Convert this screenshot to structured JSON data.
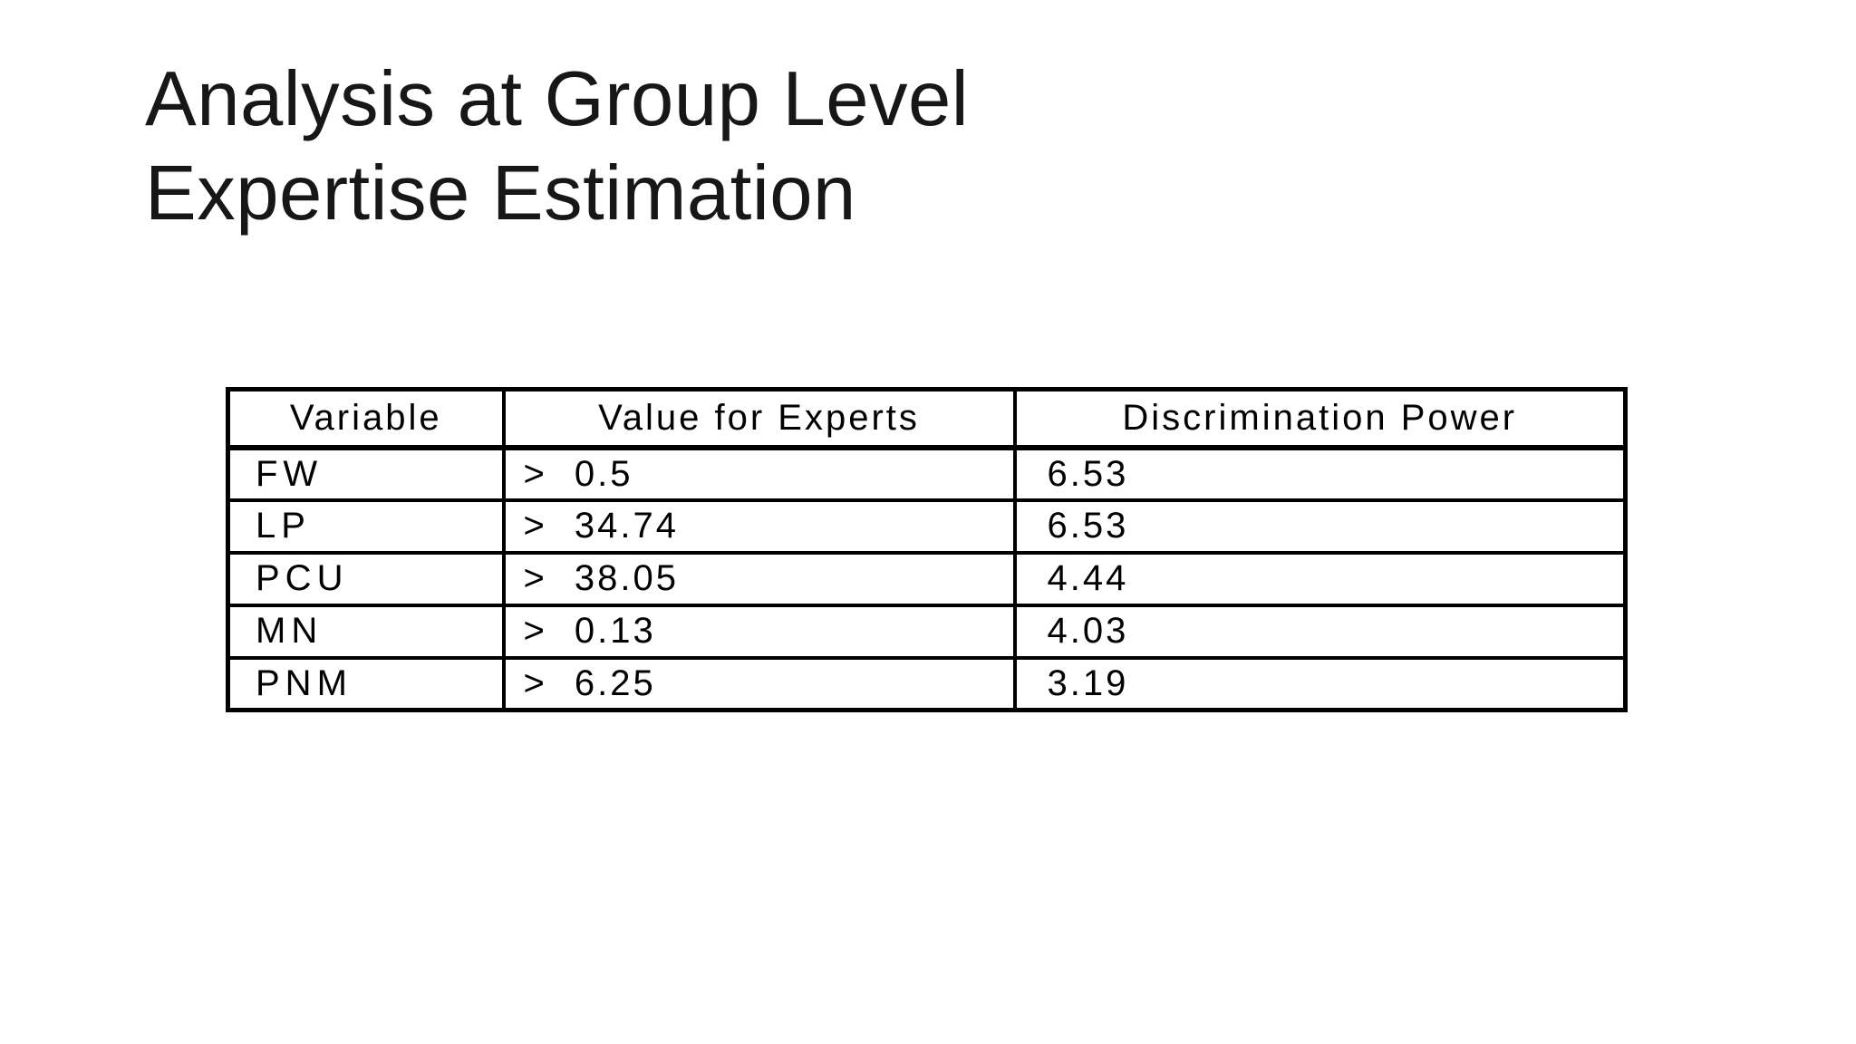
{
  "slide": {
    "colors": {
      "background": "#ffffff",
      "title_text": "#171717",
      "table_text": "#000000",
      "table_border": "#000000"
    },
    "title": {
      "line1": "Analysis at Group Level",
      "line2": "Expertise Estimation"
    },
    "table": {
      "headers": [
        "Variable",
        "Value for Experts",
        "Discrimination Power"
      ],
      "rows": [
        {
          "variable": "FW",
          "operator": ">",
          "value": "0.5",
          "power": "6.53"
        },
        {
          "variable": "LP",
          "operator": ">",
          "value": "34.74",
          "power": "6.53"
        },
        {
          "variable": "PCU",
          "operator": ">",
          "value": "38.05",
          "power": "4.44"
        },
        {
          "variable": "MN",
          "operator": ">",
          "value": "0.13",
          "power": "4.03"
        },
        {
          "variable": "PNM",
          "operator": ">",
          "value": "6.25",
          "power": "3.19"
        }
      ]
    }
  }
}
